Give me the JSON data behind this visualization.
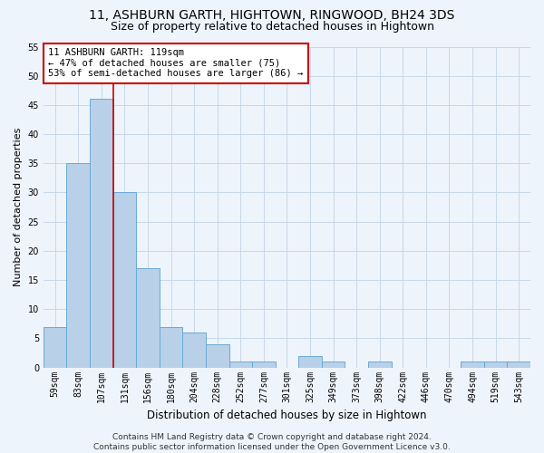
{
  "title": "11, ASHBURN GARTH, HIGHTOWN, RINGWOOD, BH24 3DS",
  "subtitle": "Size of property relative to detached houses in Hightown",
  "xlabel": "Distribution of detached houses by size in Hightown",
  "ylabel": "Number of detached properties",
  "categories": [
    "59sqm",
    "83sqm",
    "107sqm",
    "131sqm",
    "156sqm",
    "180sqm",
    "204sqm",
    "228sqm",
    "252sqm",
    "277sqm",
    "301sqm",
    "325sqm",
    "349sqm",
    "373sqm",
    "398sqm",
    "422sqm",
    "446sqm",
    "470sqm",
    "494sqm",
    "519sqm",
    "543sqm"
  ],
  "values": [
    7,
    35,
    46,
    30,
    17,
    7,
    6,
    4,
    1,
    1,
    0,
    2,
    1,
    0,
    1,
    0,
    0,
    0,
    1,
    1,
    1
  ],
  "bar_color": "#b8d0e8",
  "bar_edge_color": "#6aaad4",
  "grid_color": "#c8d8e8",
  "background_color": "#eef4fb",
  "red_line_x": 2.5,
  "red_line_color": "#cc0000",
  "annotation_text": "11 ASHBURN GARTH: 119sqm\n← 47% of detached houses are smaller (75)\n53% of semi-detached houses are larger (86) →",
  "annotation_box_color": "#ffffff",
  "annotation_border_color": "#cc0000",
  "footer_text": "Contains HM Land Registry data © Crown copyright and database right 2024.\nContains public sector information licensed under the Open Government Licence v3.0.",
  "ylim": [
    0,
    55
  ],
  "yticks": [
    0,
    5,
    10,
    15,
    20,
    25,
    30,
    35,
    40,
    45,
    50,
    55
  ],
  "title_fontsize": 10,
  "subtitle_fontsize": 9,
  "tick_fontsize": 7,
  "ylabel_fontsize": 8,
  "xlabel_fontsize": 8.5,
  "annotation_fontsize": 7.5,
  "footer_fontsize": 6.5
}
